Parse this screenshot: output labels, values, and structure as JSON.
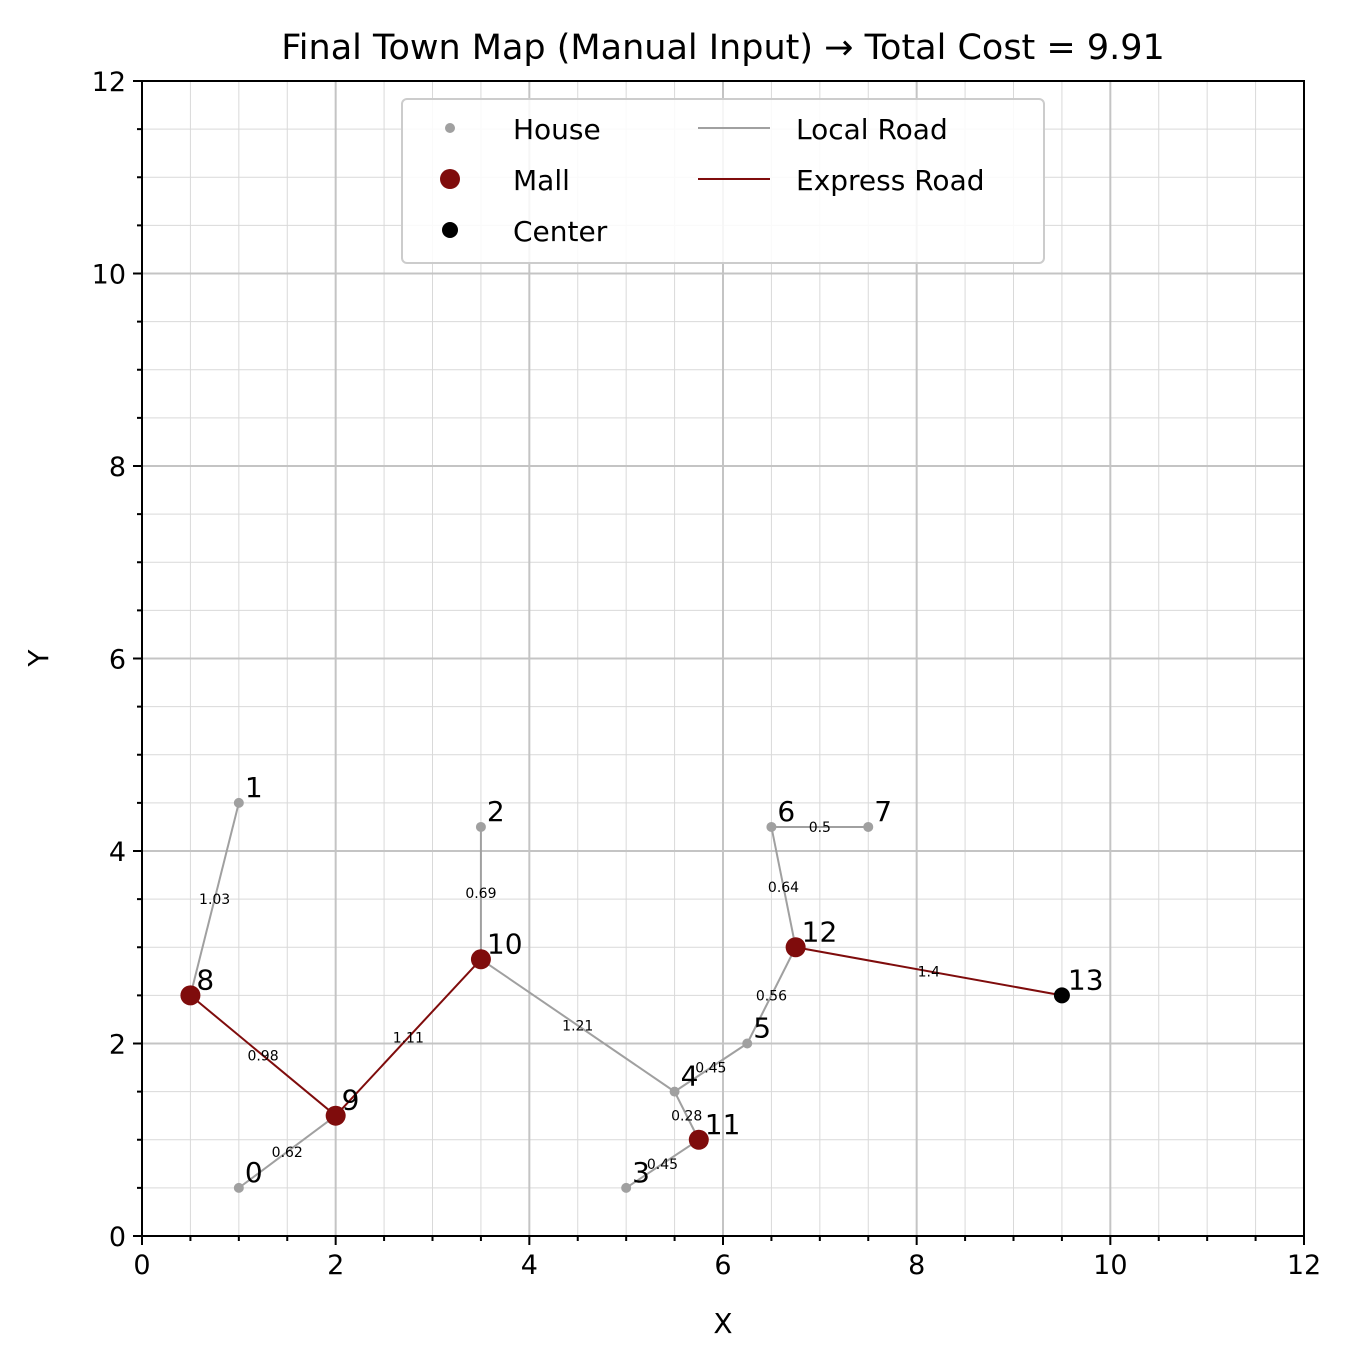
{
  "chart_data": {
    "type": "scatter",
    "title": "Final Town Map (Manual Input) → Total Cost = 9.91",
    "xlabel": "X",
    "ylabel": "Y",
    "xlim": [
      0,
      12
    ],
    "ylim": [
      0,
      12
    ],
    "x_ticks": [
      "0",
      "2",
      "4",
      "6",
      "8",
      "10",
      "12"
    ],
    "y_ticks": [
      "0",
      "2",
      "4",
      "6",
      "8",
      "10",
      "12"
    ],
    "grid": true,
    "minor_grid": true,
    "legend_position": "top-center",
    "legend": [
      {
        "label": "House",
        "kind": "marker",
        "color": "#a0a0a0",
        "size": "small"
      },
      {
        "label": "Mall",
        "kind": "marker",
        "color": "#7f0c0c",
        "size": "large"
      },
      {
        "label": "Center",
        "kind": "marker",
        "color": "#000000",
        "size": "medium"
      },
      {
        "label": "Local Road",
        "kind": "line",
        "color": "#a0a0a0"
      },
      {
        "label": "Express Road",
        "kind": "line",
        "color": "#7f0c0c"
      }
    ],
    "colors": {
      "house": "#a0a0a0",
      "mall": "#7f0c0c",
      "center": "#000000",
      "local_road": "#a0a0a0",
      "express_road": "#7f0c0c"
    },
    "nodes": [
      {
        "id": "0",
        "x": 1.0,
        "y": 0.5,
        "kind": "house"
      },
      {
        "id": "1",
        "x": 1.0,
        "y": 4.5,
        "kind": "house"
      },
      {
        "id": "2",
        "x": 3.5,
        "y": 4.25,
        "kind": "house"
      },
      {
        "id": "3",
        "x": 5.0,
        "y": 0.5,
        "kind": "house"
      },
      {
        "id": "4",
        "x": 5.5,
        "y": 1.5,
        "kind": "house"
      },
      {
        "id": "5",
        "x": 6.25,
        "y": 2.0,
        "kind": "house"
      },
      {
        "id": "6",
        "x": 6.5,
        "y": 4.25,
        "kind": "house"
      },
      {
        "id": "7",
        "x": 7.5,
        "y": 4.25,
        "kind": "house"
      },
      {
        "id": "8",
        "x": 0.5,
        "y": 2.5,
        "kind": "mall"
      },
      {
        "id": "9",
        "x": 2.0,
        "y": 1.25,
        "kind": "mall"
      },
      {
        "id": "10",
        "x": 3.5,
        "y": 2.875,
        "kind": "mall"
      },
      {
        "id": "11",
        "x": 5.75,
        "y": 1.0,
        "kind": "mall"
      },
      {
        "id": "12",
        "x": 6.75,
        "y": 3.0,
        "kind": "mall"
      },
      {
        "id": "13",
        "x": 9.5,
        "y": 2.5,
        "kind": "center"
      }
    ],
    "edges": [
      {
        "from": "1",
        "to": "8",
        "type": "local",
        "cost": "1.03"
      },
      {
        "from": "8",
        "to": "9",
        "type": "express",
        "cost": "0.98"
      },
      {
        "from": "0",
        "to": "9",
        "type": "local",
        "cost": "0.62"
      },
      {
        "from": "9",
        "to": "10",
        "type": "express",
        "cost": "1.11"
      },
      {
        "from": "2",
        "to": "10",
        "type": "local",
        "cost": "0.69"
      },
      {
        "from": "10",
        "to": "4",
        "type": "local",
        "cost": "1.21"
      },
      {
        "from": "4",
        "to": "11",
        "type": "local",
        "cost": "0.28"
      },
      {
        "from": "3",
        "to": "11",
        "type": "local",
        "cost": "0.45"
      },
      {
        "from": "4",
        "to": "5",
        "type": "local",
        "cost": "0.45"
      },
      {
        "from": "5",
        "to": "12",
        "type": "local",
        "cost": "0.56"
      },
      {
        "from": "6",
        "to": "12",
        "type": "local",
        "cost": "0.64"
      },
      {
        "from": "6",
        "to": "7",
        "type": "local",
        "cost": "0.5"
      },
      {
        "from": "12",
        "to": "13",
        "type": "express",
        "cost": "1.4"
      }
    ]
  }
}
